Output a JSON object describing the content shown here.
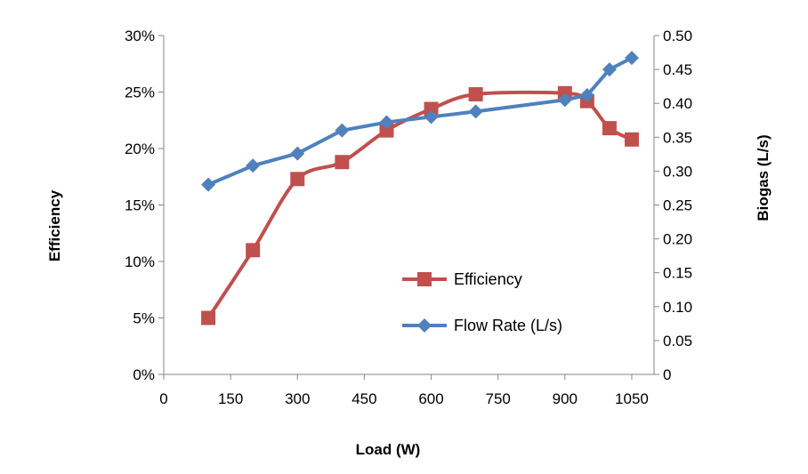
{
  "chart_data": {
    "type": "line",
    "xlabel": "Load (W)",
    "ylabel": "Efficiency",
    "y2label": "Biogas (L/s)",
    "xlim": [
      0,
      1100
    ],
    "ylim": [
      0,
      0.3
    ],
    "y2lim": [
      0,
      0.5
    ],
    "x_ticks": [
      0,
      150,
      300,
      450,
      600,
      750,
      900,
      1050
    ],
    "x_tick_labels": [
      "0",
      "150",
      "300",
      "450",
      "600",
      "750",
      "900",
      "1050"
    ],
    "y_ticks": [
      0,
      0.05,
      0.1,
      0.15,
      0.2,
      0.25,
      0.3
    ],
    "y_tick_labels": [
      "0%",
      "5%",
      "10%",
      "15%",
      "20%",
      "25%",
      "30%"
    ],
    "y2_ticks": [
      0,
      0.05,
      0.1,
      0.15,
      0.2,
      0.25,
      0.3,
      0.35,
      0.4,
      0.45,
      0.5
    ],
    "y2_tick_labels": [
      "0",
      "0.05",
      "0.10",
      "0.15",
      "0.20",
      "0.25",
      "0.30",
      "0.35",
      "0.40",
      "0.45",
      "0.50"
    ],
    "grid": false,
    "legend_position": "center-right",
    "series": [
      {
        "name": "Efficiency",
        "axis": "left",
        "color": "#c0504d",
        "marker": "square",
        "smooth": true,
        "x": [
          100,
          200,
          300,
          400,
          500,
          600,
          700,
          900,
          950,
          1000,
          1050
        ],
        "y": [
          0.05,
          0.11,
          0.173,
          0.188,
          0.216,
          0.235,
          0.248,
          0.249,
          0.242,
          0.218,
          0.208
        ]
      },
      {
        "name": "Flow Rate (L/s)",
        "axis": "right",
        "color": "#4f81bd",
        "marker": "diamond",
        "smooth": false,
        "x": [
          100,
          200,
          300,
          400,
          500,
          600,
          700,
          900,
          950,
          1000,
          1050
        ],
        "y": [
          0.28,
          0.308,
          0.326,
          0.36,
          0.372,
          0.38,
          0.388,
          0.405,
          0.412,
          0.45,
          0.467
        ]
      }
    ]
  }
}
